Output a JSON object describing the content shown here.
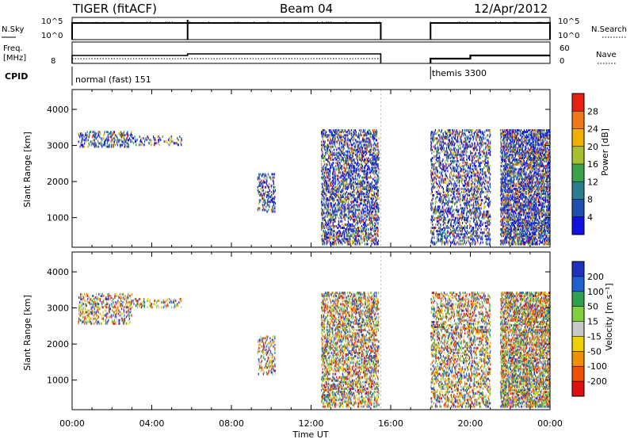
{
  "header": {
    "title": "TIGER (fitACF)",
    "beam": "Beam 04",
    "date": "12/Apr/2012"
  },
  "strip_panels": {
    "nsky": {
      "label": "N.Sky",
      "right_label": "N.Search",
      "ticks_left": [
        "10^5",
        "10^0"
      ],
      "ticks_right": [
        "10^5",
        "10^0"
      ]
    },
    "freq": {
      "label_line1": "Freq.",
      "label_line2": "[MHz]",
      "right_label": "Nave",
      "ticks_left": [
        "8"
      ],
      "ticks_right": [
        "60",
        "0"
      ]
    },
    "cpid": {
      "label": "CPID",
      "segments": [
        {
          "label": "normal (fast) 151",
          "start": 0,
          "end": 15.5
        },
        {
          "label": "themis 3300",
          "start": 18,
          "end": 24
        }
      ]
    }
  },
  "chart_data": [
    {
      "type": "heatmap",
      "name": "power-panel",
      "ylabel": "Slant Range [km]",
      "xlabel": "Time UT",
      "x_ticks": [
        "00:00",
        "04:00",
        "08:00",
        "12:00",
        "16:00",
        "20:00",
        "00:00"
      ],
      "x_range_hours": [
        0,
        24
      ],
      "y_ticks": [
        1000,
        2000,
        3000,
        4000
      ],
      "ylim": [
        180,
        4550
      ],
      "colorbar": {
        "label": "Power [dB]",
        "ticks": [
          "4",
          "8",
          "12",
          "16",
          "20",
          "24",
          "28"
        ],
        "colors": [
          "#1010e0",
          "#1f4fb0",
          "#2a7d8a",
          "#3aa24a",
          "#a8c030",
          "#f0b000",
          "#f07818",
          "#e82010"
        ]
      },
      "data_gap_hours": [
        15.5,
        18.0
      ],
      "scatter_regions": [
        {
          "t0": 0.3,
          "t1": 3.0,
          "r0": 3000,
          "r1": 3450,
          "density": 0.4
        },
        {
          "t0": 3.0,
          "t1": 5.5,
          "r0": 3050,
          "r1": 3300,
          "density": 0.25
        },
        {
          "t0": 9.3,
          "t1": 10.2,
          "r0": 1200,
          "r1": 2300,
          "density": 0.4
        },
        {
          "t0": 12.5,
          "t1": 15.4,
          "r0": 300,
          "r1": 3500,
          "density": 0.55
        },
        {
          "t0": 18.0,
          "t1": 21.0,
          "r0": 300,
          "r1": 3500,
          "density": 0.45
        },
        {
          "t0": 21.5,
          "t1": 24.0,
          "r0": 300,
          "r1": 3500,
          "density": 0.8
        }
      ]
    },
    {
      "type": "heatmap",
      "name": "velocity-panel",
      "ylabel": "Slant Range [km]",
      "xlabel": "Time UT",
      "x_ticks": [
        "00:00",
        "04:00",
        "08:00",
        "12:00",
        "16:00",
        "20:00",
        "00:00"
      ],
      "x_range_hours": [
        0,
        24
      ],
      "y_ticks": [
        1000,
        2000,
        3000,
        4000
      ],
      "ylim": [
        180,
        4550
      ],
      "colorbar": {
        "label": "Velocity [m s⁻¹]",
        "ticks": [
          "200",
          "100",
          "50",
          "15",
          "-15",
          "-50",
          "-100",
          "-200"
        ],
        "colors": [
          "#2030c0",
          "#2060d0",
          "#30a050",
          "#80d040",
          "#c8c8c8",
          "#f0d000",
          "#f09000",
          "#f05000",
          "#e01010"
        ]
      },
      "data_gap_hours": [
        15.5,
        18.0
      ],
      "scatter_regions": [
        {
          "t0": 0.3,
          "t1": 3.0,
          "r0": 2600,
          "r1": 3450,
          "density": 0.4
        },
        {
          "t0": 3.0,
          "t1": 5.5,
          "r0": 3050,
          "r1": 3300,
          "density": 0.25
        },
        {
          "t0": 9.3,
          "t1": 10.2,
          "r0": 1200,
          "r1": 2300,
          "density": 0.4
        },
        {
          "t0": 12.5,
          "t1": 15.4,
          "r0": 300,
          "r1": 3500,
          "density": 0.55
        },
        {
          "t0": 18.0,
          "t1": 21.0,
          "r0": 300,
          "r1": 3500,
          "density": 0.45
        },
        {
          "t0": 21.5,
          "t1": 24.0,
          "r0": 300,
          "r1": 3500,
          "density": 0.8
        }
      ]
    }
  ]
}
